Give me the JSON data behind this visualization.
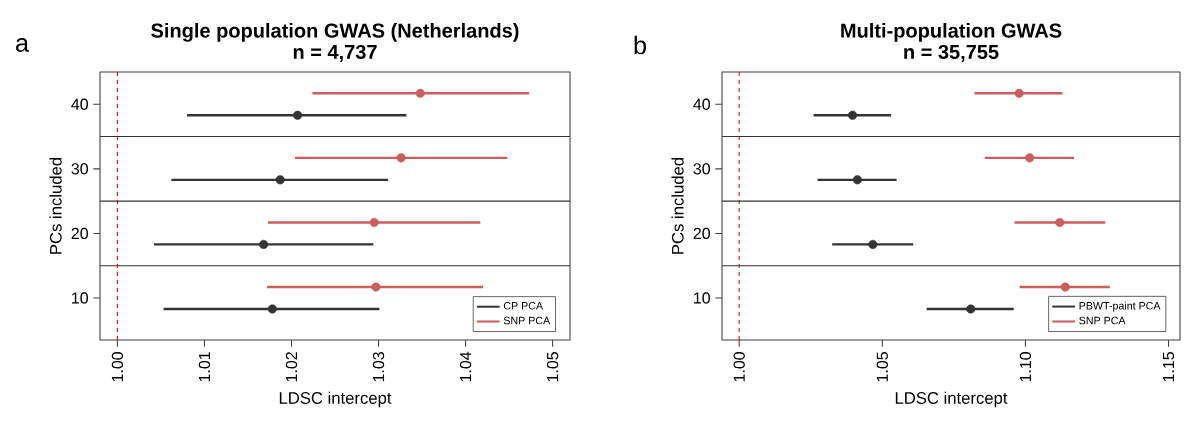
{
  "chart_data": [
    {
      "type": "scatter",
      "title": "Single population GWAS (Netherlands)",
      "subtitle": "n = 4,737",
      "xlabel": "LDSC intercept",
      "ylabel": "PCs included",
      "annotations": [
        "a"
      ],
      "series": [
        {
          "name": "CP PCA",
          "color": "#333333",
          "x": [
            1.0178,
            1.0168,
            1.0187,
            1.0207
          ],
          "values": [
            8.3,
            18.3,
            28.3,
            38.3
          ],
          "xerrors": [
            [
              1.0053,
              1.0301
            ],
            [
              1.0042,
              1.0294
            ],
            [
              1.0062,
              1.0311
            ],
            [
              1.008,
              1.0332
            ]
          ]
        },
        {
          "name": "SNP PCA",
          "color": "#cd5c5c",
          "x": [
            1.0297,
            1.0295,
            1.0326,
            1.0348
          ],
          "values": [
            11.7,
            21.7,
            31.7,
            41.7
          ],
          "xerrors": [
            [
              1.0172,
              1.042
            ],
            [
              1.0173,
              1.0417
            ],
            [
              1.0204,
              1.0448
            ],
            [
              1.0224,
              1.0473
            ]
          ]
        }
      ],
      "xlim": [
        0.998,
        1.052
      ],
      "ylim": [
        3.5,
        45
      ],
      "xticks": [
        {
          "value": 1,
          "label": "1.00"
        },
        1.01,
        1.02,
        1.03,
        1.04,
        1.05
      ],
      "yticks": [
        10,
        20,
        30,
        40
      ],
      "ref_lines": [
        {
          "axis": "x",
          "value": 1,
          "color": "#ff0000",
          "line_style": "dashed"
        },
        {
          "axis": "y",
          "value": 15,
          "color": "#333333",
          "line_style": "solid"
        },
        {
          "axis": "y",
          "value": 25,
          "color": "#333333",
          "line_style": "solid"
        },
        {
          "axis": "y",
          "value": 35,
          "color": "#333333",
          "line_style": "solid"
        }
      ],
      "legend": "bottom right",
      "marker": "circle",
      "grid": false
    },
    {
      "type": "scatter",
      "title": "Multi-population GWAS",
      "subtitle": "n = 35,755",
      "xlabel": "LDSC intercept",
      "ylabel": "PCs included",
      "annotations": [
        "b"
      ],
      "series": [
        {
          "name": "PBWT-paint PCA",
          "color": "#333333",
          "x": [
            1.0809,
            1.0467,
            1.0413,
            1.0396
          ],
          "values": [
            8.3,
            18.3,
            28.3,
            38.3
          ],
          "xerrors": [
            [
              1.0655,
              1.0959
            ],
            [
              1.0325,
              1.0608
            ],
            [
              1.0274,
              1.055
            ],
            [
              1.026,
              1.0531
            ]
          ]
        },
        {
          "name": "SNP PCA",
          "color": "#cd5c5c",
          "x": [
            1.1139,
            1.112,
            1.1015,
            1.0978
          ],
          "values": [
            11.7,
            21.7,
            31.7,
            41.7
          ],
          "xerrors": [
            [
              1.098,
              1.1295
            ],
            [
              1.0962,
              1.1279
            ],
            [
              1.0858,
              1.117
            ],
            [
              1.0822,
              1.1129
            ]
          ]
        }
      ],
      "xlim": [
        0.994,
        1.154
      ],
      "ylim": [
        3.5,
        45
      ],
      "xticks": [
        {
          "value": 1,
          "label": "1.00"
        },
        {
          "value": 1.05,
          "label": "1.05"
        },
        {
          "value": 1.1,
          "label": "1.10"
        },
        {
          "value": 1.15,
          "label": "1.15"
        }
      ],
      "yticks": [
        10,
        20,
        30,
        40
      ],
      "ref_lines": [
        {
          "axis": "x",
          "value": 1,
          "color": "#ff0000",
          "line_style": "dashed"
        },
        {
          "axis": "y",
          "value": 15,
          "color": "#333333",
          "line_style": "solid"
        },
        {
          "axis": "y",
          "value": 25,
          "color": "#333333",
          "line_style": "solid"
        },
        {
          "axis": "y",
          "value": 35,
          "color": "#333333",
          "line_style": "solid"
        }
      ],
      "legend": "bottom right",
      "marker": "circle",
      "grid": false
    }
  ]
}
